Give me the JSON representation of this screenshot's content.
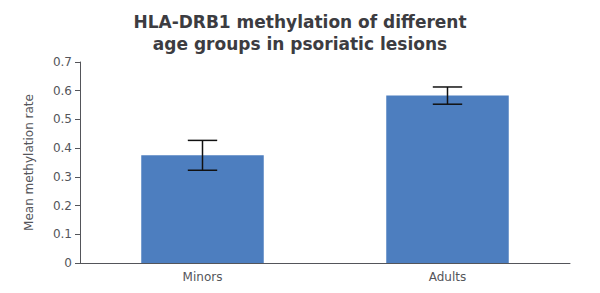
{
  "chart_data": {
    "type": "bar",
    "title": "HLA-DRB1 methylation of different\nage groups in psoriatic lesions",
    "ylabel": "Mean methylation rate",
    "categories": [
      "Minors",
      "Adults"
    ],
    "values": [
      0.375,
      0.583
    ],
    "errors": [
      0.052,
      0.03
    ],
    "color": "#4d7ebf",
    "ylim": [
      0,
      0.7
    ],
    "yticks": [
      0,
      0.1,
      0.2,
      0.3,
      0.4,
      0.5,
      0.6,
      0.7
    ],
    "grid": false
  }
}
